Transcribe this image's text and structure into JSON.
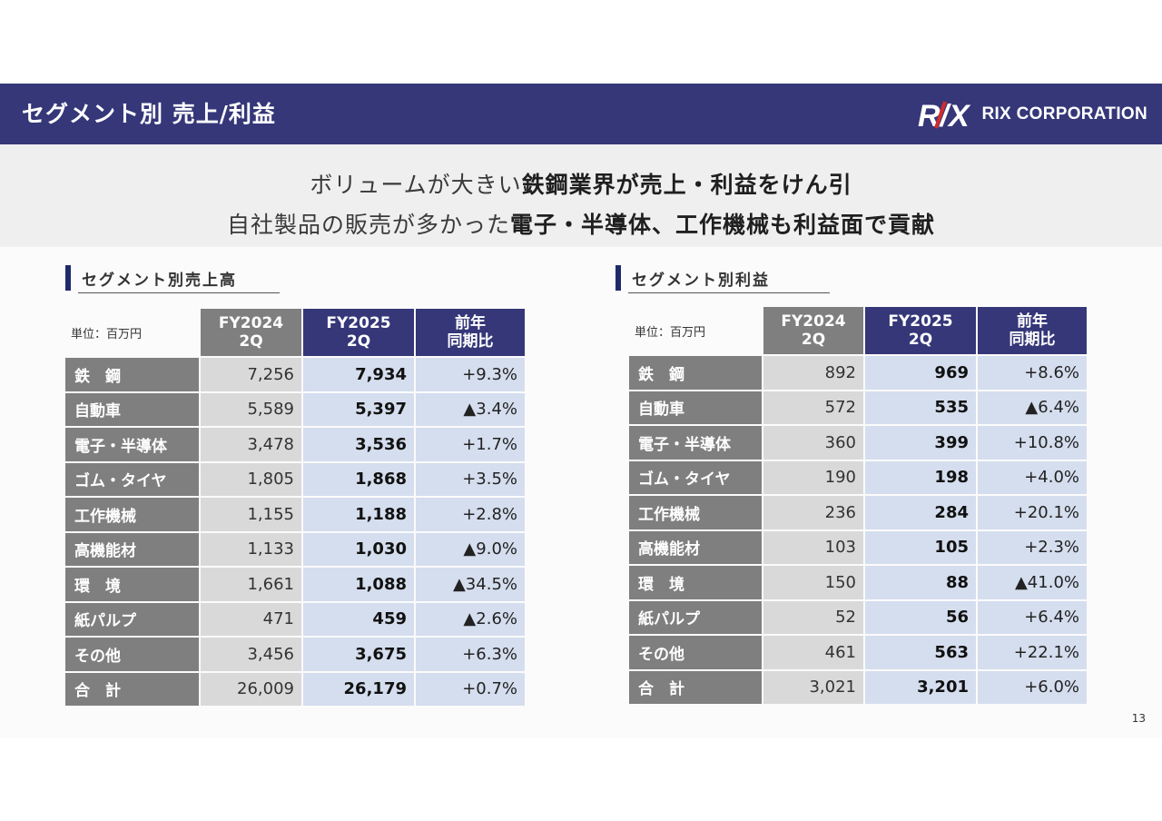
{
  "header": {
    "title": "セグメント別 売上/利益",
    "logo_mark": "R/X",
    "logo_text": "RIX CORPORATION"
  },
  "subtitle": {
    "line1_normal": "ボリュームが大きい",
    "line1_bold": "鉄鋼業界が売上・利益をけん引",
    "line2_normal": "自社製品の販売が多かった",
    "line2_bold": "電子・半導体、工作機械も利益面で貢献"
  },
  "sales": {
    "section_title": "セグメント別売上高",
    "unit": "単位：百万円",
    "headers": [
      "FY2024 2Q",
      "FY2025 2Q",
      "前年 同期比"
    ],
    "rows": [
      {
        "label": "鉄　鋼",
        "fy2024": "7,256",
        "fy2025": "7,934",
        "change": "+9.3%"
      },
      {
        "label": "自動車",
        "fy2024": "5,589",
        "fy2025": "5,397",
        "change": "▲3.4%"
      },
      {
        "label": "電子・半導体",
        "fy2024": "3,478",
        "fy2025": "3,536",
        "change": "+1.7%"
      },
      {
        "label": "ゴム・タイヤ",
        "fy2024": "1,805",
        "fy2025": "1,868",
        "change": "+3.5%"
      },
      {
        "label": "工作機械",
        "fy2024": "1,155",
        "fy2025": "1,188",
        "change": "+2.8%"
      },
      {
        "label": "高機能材",
        "fy2024": "1,133",
        "fy2025": "1,030",
        "change": "▲9.0%"
      },
      {
        "label": "環　境",
        "fy2024": "1,661",
        "fy2025": "1,088",
        "change": "▲34.5%"
      },
      {
        "label": "紙パルプ",
        "fy2024": "471",
        "fy2025": "459",
        "change": "▲2.6%"
      },
      {
        "label": "その他",
        "fy2024": "3,456",
        "fy2025": "3,675",
        "change": "+6.3%"
      },
      {
        "label": "合　計",
        "fy2024": "26,009",
        "fy2025": "26,179",
        "change": "+0.7%"
      }
    ]
  },
  "profit": {
    "section_title": "セグメント別利益",
    "unit": "単位：百万円",
    "headers": [
      "FY2024 2Q",
      "FY2025 2Q",
      "前年 同期比"
    ],
    "rows": [
      {
        "label": "鉄　鋼",
        "fy2024": "892",
        "fy2025": "969",
        "change": "+8.6%"
      },
      {
        "label": "自動車",
        "fy2024": "572",
        "fy2025": "535",
        "change": "▲6.4%"
      },
      {
        "label": "電子・半導体",
        "fy2024": "360",
        "fy2025": "399",
        "change": "+10.8%"
      },
      {
        "label": "ゴム・タイヤ",
        "fy2024": "190",
        "fy2025": "198",
        "change": "+4.0%"
      },
      {
        "label": "工作機械",
        "fy2024": "236",
        "fy2025": "284",
        "change": "+20.1%"
      },
      {
        "label": "高機能材",
        "fy2024": "103",
        "fy2025": "105",
        "change": "+2.3%"
      },
      {
        "label": "環　境",
        "fy2024": "150",
        "fy2025": "88",
        "change": "▲41.0%"
      },
      {
        "label": "紙パルプ",
        "fy2024": "52",
        "fy2025": "56",
        "change": "+6.4%"
      },
      {
        "label": "その他",
        "fy2024": "461",
        "fy2025": "563",
        "change": "+22.1%"
      },
      {
        "label": "合　計",
        "fy2024": "3,021",
        "fy2025": "3,201",
        "change": "+6.0%"
      }
    ]
  },
  "page_number": "13",
  "colors": {
    "navy": "#353779",
    "gray_header": "#7f7f7f",
    "gray_cell": "#d9d9d9",
    "blue_cell": "#d5deee"
  }
}
